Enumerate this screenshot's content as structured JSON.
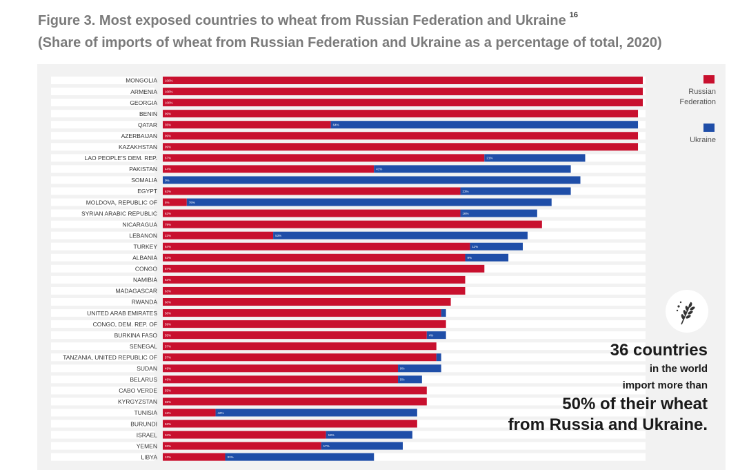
{
  "caption": {
    "title": "Figure 3. Most exposed countries to wheat from Russian Federation and Ukraine",
    "footnote": "16",
    "subtitle": "(Share of imports of wheat from Russian Federation and Ukraine as a percentage of total, 2020)"
  },
  "legend": {
    "russia": "Russian Federation",
    "ukraine": "Ukraine"
  },
  "colors": {
    "russia": "#c8102e",
    "ukraine": "#1f4ea8",
    "track": "#ffffff"
  },
  "icon": "wheat-icon",
  "callout": {
    "line1": "36 countries",
    "line2": "in the world",
    "line3": "import more than",
    "line4": "50% of their wheat",
    "line5": "from Russia and Ukraine."
  },
  "chart_data": {
    "type": "bar",
    "orientation": "horizontal",
    "stacked": true,
    "xlim": [
      0,
      100
    ],
    "grid": false,
    "legend_position": "top-right",
    "categories": [
      "MONGOLIA",
      "ARMENIA",
      "GEORGIA",
      "BENIN",
      "QATAR",
      "AZERBAIJAN",
      "KAZAKHSTAN",
      "LAO PEOPLE'S DEM. REP.",
      "PAKISTAN",
      "SOMALIA",
      "EGYPT",
      "MOLDOVA, REPUBLIC OF",
      "SYRIAN ARABIC REPUBLIC",
      "NICARAGUA",
      "LEBANON",
      "TURKEY",
      "ALBANIA",
      "CONGO",
      "NAMIBIA",
      "MADAGASCAR",
      "RWANDA",
      "UNITED ARAB EMIRATES",
      "CONGO, DEM. REP. OF",
      "BURKINA FASO",
      "SENEGAL",
      "TANZANIA, UNITED REPUBLIC OF",
      "SUDAN",
      "BELARUS",
      "CABO VERDE",
      "KYRGYZSTAN",
      "TUNISIA",
      "BURUNDI",
      "ISRAEL",
      "YEMEN",
      "LIBYA"
    ],
    "series": [
      {
        "name": "Russian Federation",
        "values": [
          100,
          100,
          100,
          99,
          35,
          99,
          99,
          67,
          44,
          0,
          62,
          5,
          62,
          79,
          23,
          64,
          63,
          67,
          63,
          63,
          60,
          58,
          59,
          55,
          57,
          57,
          49,
          49,
          55,
          55,
          11,
          53,
          34,
          33,
          13
        ]
      },
      {
        "name": "Ukraine",
        "values": [
          0,
          0,
          0,
          0,
          64,
          0,
          0,
          21,
          41,
          87,
          23,
          76,
          16,
          0,
          53,
          11,
          9,
          0,
          0,
          0,
          0,
          1,
          0,
          4,
          0,
          1,
          9,
          5,
          0,
          0,
          42,
          0,
          18,
          17,
          31
        ]
      }
    ],
    "data_label_series_1": [
      "100%",
      "100%",
      "100%",
      "99%",
      "35%",
      "99%",
      "99%",
      "67%",
      "44%",
      "0%",
      "62%",
      "5%",
      "62%",
      "79%",
      "23%",
      "64%",
      "63%",
      "67%",
      "63%",
      "63%",
      "60%",
      "58%",
      "59%",
      "55%",
      "57%",
      "57%",
      "49%",
      "49%",
      "55%",
      "55%",
      "11%",
      "53%",
      "34%",
      "33%",
      "13%"
    ],
    "data_label_series_2": [
      "",
      "",
      "",
      "",
      "64%",
      "",
      "",
      "21%",
      "41%",
      "",
      "23%",
      "76%",
      "16%",
      "",
      "53%",
      "11%",
      "9%",
      "",
      "",
      "",
      "",
      "",
      "",
      "4%",
      "",
      "",
      "9%",
      "5%",
      "",
      "",
      "42%",
      "",
      "18%",
      "17%",
      "31%"
    ]
  }
}
